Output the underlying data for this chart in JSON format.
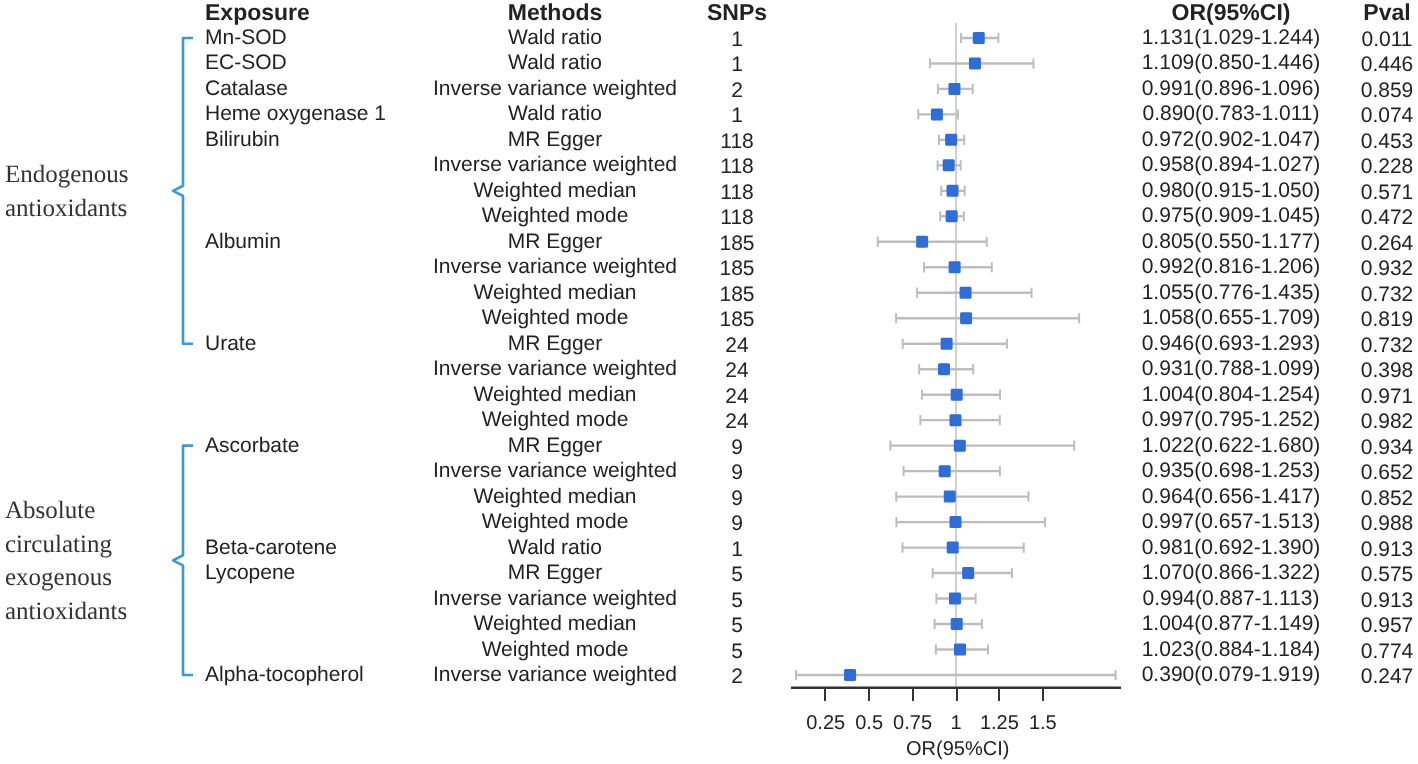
{
  "chart_data": {
    "type": "scatter",
    "orientation": "horizontal",
    "marker": "square",
    "color": "#2f6ed8",
    "xlabel": "OR(95%CI)",
    "xlim": [
      0.05,
      1.95
    ],
    "xticks": [
      0.25,
      0.5,
      0.75,
      1,
      1.25,
      1.5
    ],
    "categories": [
      "Wald ratio",
      "Wald ratio",
      "Inverse variance weighted",
      "Wald ratio",
      "MR Egger",
      "Inverse variance weighted",
      "Weighted median",
      "Weighted mode",
      "MR Egger",
      "Inverse variance weighted",
      "Weighted median",
      "Weighted mode",
      "MR Egger",
      "Inverse variance weighted",
      "Weighted median",
      "Weighted mode",
      "MR Egger",
      "Inverse variance weighted",
      "Weighted median",
      "Weighted mode",
      "Wald ratio",
      "MR Egger",
      "Inverse variance weighted",
      "Weighted median",
      "Weighted mode",
      "Inverse variance weighted"
    ],
    "values": [
      1.131,
      1.109,
      0.991,
      0.89,
      0.972,
      0.958,
      0.98,
      0.975,
      0.805,
      0.992,
      1.055,
      1.058,
      0.946,
      0.931,
      1.004,
      0.997,
      1.022,
      0.935,
      0.964,
      0.997,
      0.981,
      1.07,
      0.994,
      1.004,
      1.023,
      0.39
    ],
    "errors": [
      [
        1.029,
        1.244
      ],
      [
        0.85,
        1.446
      ],
      [
        0.896,
        1.096
      ],
      [
        0.783,
        1.011
      ],
      [
        0.902,
        1.047
      ],
      [
        0.894,
        1.027
      ],
      [
        0.915,
        1.05
      ],
      [
        0.909,
        1.045
      ],
      [
        0.55,
        1.177
      ],
      [
        0.816,
        1.206
      ],
      [
        0.776,
        1.435
      ],
      [
        0.655,
        1.709
      ],
      [
        0.693,
        1.293
      ],
      [
        0.788,
        1.099
      ],
      [
        0.804,
        1.254
      ],
      [
        0.795,
        1.252
      ],
      [
        0.622,
        1.68
      ],
      [
        0.698,
        1.253
      ],
      [
        0.656,
        1.417
      ],
      [
        0.657,
        1.513
      ],
      [
        0.692,
        1.39
      ],
      [
        0.866,
        1.322
      ],
      [
        0.887,
        1.113
      ],
      [
        0.877,
        1.149
      ],
      [
        0.884,
        1.184
      ],
      [
        0.079,
        1.919
      ]
    ],
    "value_labels": [
      "1.131(1.029-1.244)",
      "1.109(0.850-1.446)",
      "0.991(0.896-1.096)",
      "0.890(0.783-1.011)",
      "0.972(0.902-1.047)",
      "0.958(0.894-1.027)",
      "0.980(0.915-1.050)",
      "0.975(0.909-1.045)",
      "0.805(0.550-1.177)",
      "0.992(0.816-1.206)",
      "1.055(0.776-1.435)",
      "1.058(0.655-1.709)",
      "0.946(0.693-1.293)",
      "0.931(0.788-1.099)",
      "1.004(0.804-1.254)",
      "0.997(0.795-1.252)",
      "1.022(0.622-1.680)",
      "0.935(0.698-1.253)",
      "0.964(0.656-1.417)",
      "0.997(0.657-1.513)",
      "0.981(0.692-1.390)",
      "1.070(0.866-1.322)",
      "0.994(0.887-1.113)",
      "1.004(0.877-1.149)",
      "1.023(0.884-1.184)",
      "0.390(0.079-1.919)"
    ],
    "ref_lines": [
      {
        "axis": "x",
        "value": 1,
        "color": "#d0d0d0"
      }
    ],
    "annotations": [
      "Exposure",
      "Methods",
      "SNPs",
      "OR(95%CI)",
      "Pval",
      "Endogenous\nantioxidants",
      "Absolute\ncirculating\nexogenous\nantioxidants",
      "Mn-SOD",
      "EC-SOD",
      "Catalase",
      "Heme oxygenase 1",
      "Bilirubin",
      "Albumin",
      "Urate",
      "Ascorbate",
      "Beta-carotene",
      "Lycopene",
      "Alpha-tocopherol",
      "1",
      "1",
      "2",
      "1",
      "118",
      "118",
      "118",
      "118",
      "185",
      "185",
      "185",
      "185",
      "24",
      "24",
      "24",
      "24",
      "9",
      "9",
      "9",
      "9",
      "1",
      "5",
      "5",
      "5",
      "5",
      "2",
      "0.011",
      "0.446",
      "0.859",
      "0.074",
      "0.453",
      "0.228",
      "0.571",
      "0.472",
      "0.264",
      "0.932",
      "0.732",
      "0.819",
      "0.732",
      "0.398",
      "0.971",
      "0.982",
      "0.934",
      "0.652",
      "0.852",
      "0.988",
      "0.913",
      "0.575",
      "0.913",
      "0.957",
      "0.774",
      "0.247"
    ]
  }
}
